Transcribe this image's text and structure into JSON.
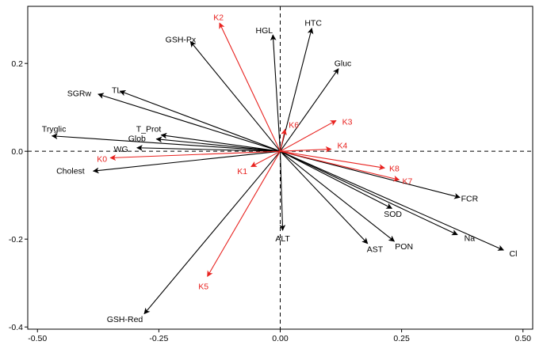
{
  "chart_data": {
    "type": "scatter",
    "xlim": [
      -0.52,
      0.52
    ],
    "ylim": [
      -0.405,
      0.33
    ],
    "x_ticks": [
      -0.5,
      -0.25,
      0.0,
      0.25,
      0.5
    ],
    "x_tick_labels": [
      "-0.50",
      "-0.25",
      "0.00",
      "0.25",
      "0.50"
    ],
    "y_ticks": [
      -0.4,
      -0.2,
      0.0,
      0.2
    ],
    "y_tick_labels": [
      "-0.4",
      "-0.2",
      "0.0",
      "0.2"
    ],
    "colors": {
      "variables": "#000000",
      "groups": "#e8221f"
    },
    "series": [
      {
        "color": "#000000",
        "vectors": [
          {
            "label": "HTC",
            "x": 0.065,
            "y": 0.28,
            "lx": 0.068,
            "ly": 0.293
          },
          {
            "label": "HGL",
            "x": -0.015,
            "y": 0.265,
            "lx": -0.033,
            "ly": 0.276
          },
          {
            "label": "GSH-Px",
            "x": -0.185,
            "y": 0.25,
            "lx": -0.205,
            "ly": 0.255
          },
          {
            "label": "Gluc",
            "x": 0.12,
            "y": 0.188,
            "lx": 0.129,
            "ly": 0.201
          },
          {
            "label": "SGRw",
            "x": -0.375,
            "y": 0.13,
            "lx": -0.414,
            "ly": 0.133
          },
          {
            "label": "TL",
            "x": -0.33,
            "y": 0.137,
            "lx": -0.337,
            "ly": 0.14
          },
          {
            "label": "Tryglic",
            "x": -0.47,
            "y": 0.035,
            "lx": -0.466,
            "ly": 0.052
          },
          {
            "label": "T_Prot",
            "x": -0.245,
            "y": 0.037,
            "lx": -0.271,
            "ly": 0.052
          },
          {
            "label": "Glob",
            "x": -0.255,
            "y": 0.028,
            "lx": -0.295,
            "ly": 0.03
          },
          {
            "label": "WG",
            "x": -0.295,
            "y": 0.008,
            "lx": -0.328,
            "ly": 0.006
          },
          {
            "label": "Cholest",
            "x": -0.385,
            "y": -0.045,
            "lx": -0.432,
            "ly": -0.044
          },
          {
            "label": "GSH-Red",
            "x": -0.28,
            "y": -0.37,
            "lx": -0.32,
            "ly": -0.382
          },
          {
            "label": "ALT",
            "x": 0.005,
            "y": -0.18,
            "lx": 0.005,
            "ly": -0.198
          },
          {
            "label": "AST",
            "x": 0.18,
            "y": -0.21,
            "lx": 0.195,
            "ly": -0.222
          },
          {
            "label": "PON",
            "x": 0.235,
            "y": -0.205,
            "lx": 0.255,
            "ly": -0.216
          },
          {
            "label": "SOD",
            "x": 0.23,
            "y": -0.13,
            "lx": 0.232,
            "ly": -0.142
          },
          {
            "label": "FCR",
            "x": 0.37,
            "y": -0.105,
            "lx": 0.39,
            "ly": -0.107
          },
          {
            "label": "Na",
            "x": 0.365,
            "y": -0.19,
            "lx": 0.39,
            "ly": -0.197
          },
          {
            "label": "Cl",
            "x": 0.46,
            "y": -0.225,
            "lx": 0.48,
            "ly": -0.232
          }
        ]
      },
      {
        "color": "#e8221f",
        "vectors": [
          {
            "label": "K2",
            "x": -0.125,
            "y": 0.292,
            "lx": -0.127,
            "ly": 0.306
          },
          {
            "label": "K6",
            "x": 0.01,
            "y": 0.05,
            "lx": 0.028,
            "ly": 0.061
          },
          {
            "label": "K3",
            "x": 0.115,
            "y": 0.07,
            "lx": 0.138,
            "ly": 0.068
          },
          {
            "label": "K4",
            "x": 0.105,
            "y": 0.005,
            "lx": 0.128,
            "ly": 0.014
          },
          {
            "label": "K8",
            "x": 0.215,
            "y": -0.038,
            "lx": 0.235,
            "ly": -0.038
          },
          {
            "label": "K7",
            "x": 0.245,
            "y": -0.065,
            "lx": 0.262,
            "ly": -0.067
          },
          {
            "label": "K1",
            "x": -0.06,
            "y": -0.035,
            "lx": -0.078,
            "ly": -0.045
          },
          {
            "label": "K0",
            "x": -0.35,
            "y": -0.015,
            "lx": -0.367,
            "ly": -0.017
          },
          {
            "label": "K5",
            "x": -0.15,
            "y": -0.285,
            "lx": -0.158,
            "ly": -0.307
          }
        ]
      }
    ]
  }
}
